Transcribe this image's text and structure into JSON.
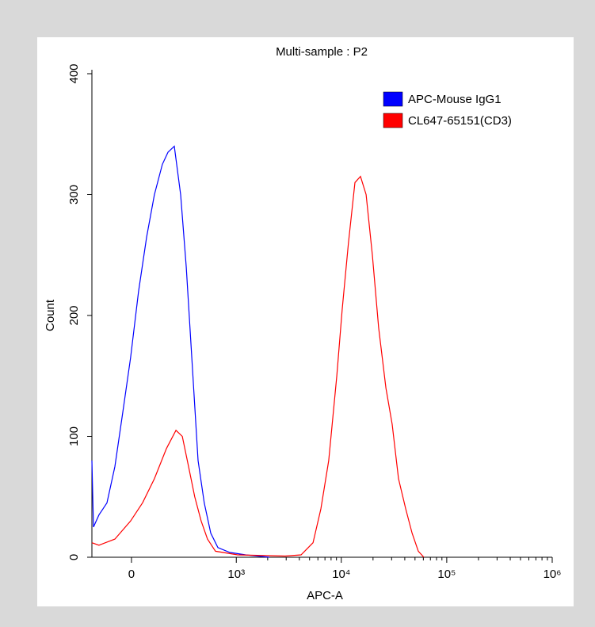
{
  "chart_data": {
    "type": "line",
    "title": "Multi-sample : P2",
    "x_label": "APC-A",
    "y_label": "Count",
    "xscale": "biexponential",
    "xlim": [
      -200,
      1000000
    ],
    "ylim": [
      0,
      400
    ],
    "xticks": [
      0,
      {
        "value": 1000,
        "label": "10³"
      },
      {
        "value": 10000,
        "label": "10⁴"
      },
      {
        "value": 100000,
        "label": "10⁵"
      },
      {
        "value": 1000000,
        "label": "10⁶"
      }
    ],
    "yticks": [
      0,
      100,
      200,
      300,
      400
    ],
    "legend": "top-right",
    "series": [
      {
        "name": "APC-Mouse IgG1",
        "color": "#0000ff",
        "x": [
          -200,
          -190,
          -158,
          -115,
          -76,
          -39,
          -4,
          32,
          69,
          107,
          149,
          181,
          221,
          265,
          308,
          355,
          415,
          481,
          560,
          660,
          863,
          1230,
          2075
        ],
        "values": [
          80,
          25,
          35,
          45,
          75,
          120,
          165,
          220,
          265,
          300,
          325,
          335,
          340,
          300,
          240,
          165,
          80,
          45,
          20,
          8,
          4,
          2,
          0
        ]
      },
      {
        "name": "CL647-65151(CD3)",
        "color": "#ff0000",
        "x": [
          -200,
          -158,
          -76,
          -4,
          50,
          107,
          172,
          232,
          277,
          327,
          382,
          447,
          519,
          625,
          1031,
          2930,
          4150,
          5390,
          6400,
          7600,
          9060,
          10200,
          11700,
          13470,
          15200,
          17200,
          19700,
          22600,
          26500,
          30400,
          34900,
          40800,
          46900,
          53800,
          60700
        ],
        "values": [
          12,
          10,
          15,
          30,
          45,
          65,
          90,
          105,
          100,
          75,
          50,
          30,
          15,
          5,
          2,
          1,
          2,
          12,
          40,
          80,
          150,
          205,
          260,
          310,
          315,
          300,
          250,
          190,
          140,
          110,
          65,
          40,
          20,
          5,
          0
        ]
      }
    ]
  }
}
